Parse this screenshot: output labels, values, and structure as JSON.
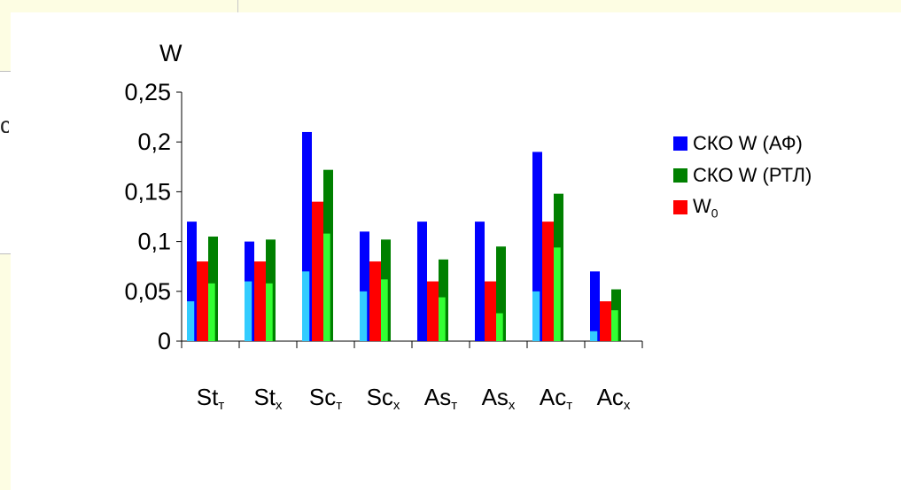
{
  "background_fragment": "c",
  "chart_data": {
    "type": "bar",
    "ylabel": "W",
    "ylim": [
      0,
      0.25
    ],
    "yticks": [
      "0",
      "0,05",
      "0,1",
      "0,15",
      "0,2",
      "0,25"
    ],
    "categories": [
      {
        "main": "St",
        "sub": "т"
      },
      {
        "main": "St",
        "sub": "x"
      },
      {
        "main": "Sc",
        "sub": "т"
      },
      {
        "main": "Sc",
        "sub": "x"
      },
      {
        "main": "As",
        "sub": "т"
      },
      {
        "main": "As",
        "sub": "x"
      },
      {
        "main": "Ac",
        "sub": "т"
      },
      {
        "main": "Ac",
        "sub": "x"
      }
    ],
    "series": [
      {
        "name": "СКО W (АФ)",
        "color": "#0000ff",
        "inner_color": "#33ccff",
        "values": [
          0.12,
          0.1,
          0.21,
          0.11,
          0.12,
          0.12,
          0.19,
          0.07
        ],
        "inner_values": [
          0.04,
          0.06,
          0.07,
          0.05,
          0.0,
          0.0,
          0.05,
          0.01
        ]
      },
      {
        "name": "W0",
        "name_main": "W",
        "name_sub": "0",
        "color": "#ff0000",
        "values": [
          0.08,
          0.08,
          0.14,
          0.08,
          0.06,
          0.06,
          0.12,
          0.04
        ]
      },
      {
        "name": "СКО W (РТЛ)",
        "color": "#008000",
        "inner_color": "#33ff33",
        "values": [
          0.105,
          0.102,
          0.172,
          0.102,
          0.082,
          0.095,
          0.148,
          0.052
        ],
        "inner_values": [
          0.058,
          0.058,
          0.108,
          0.062,
          0.044,
          0.028,
          0.094,
          0.031
        ]
      }
    ],
    "legend": {
      "position": "right",
      "items": [
        {
          "label": "СКО W (АФ)",
          "color": "#0000ff"
        },
        {
          "label": "СКО W (РТЛ)",
          "color": "#008000"
        },
        {
          "label_main": "W",
          "label_sub": "0",
          "color": "#ff0000"
        }
      ]
    }
  }
}
